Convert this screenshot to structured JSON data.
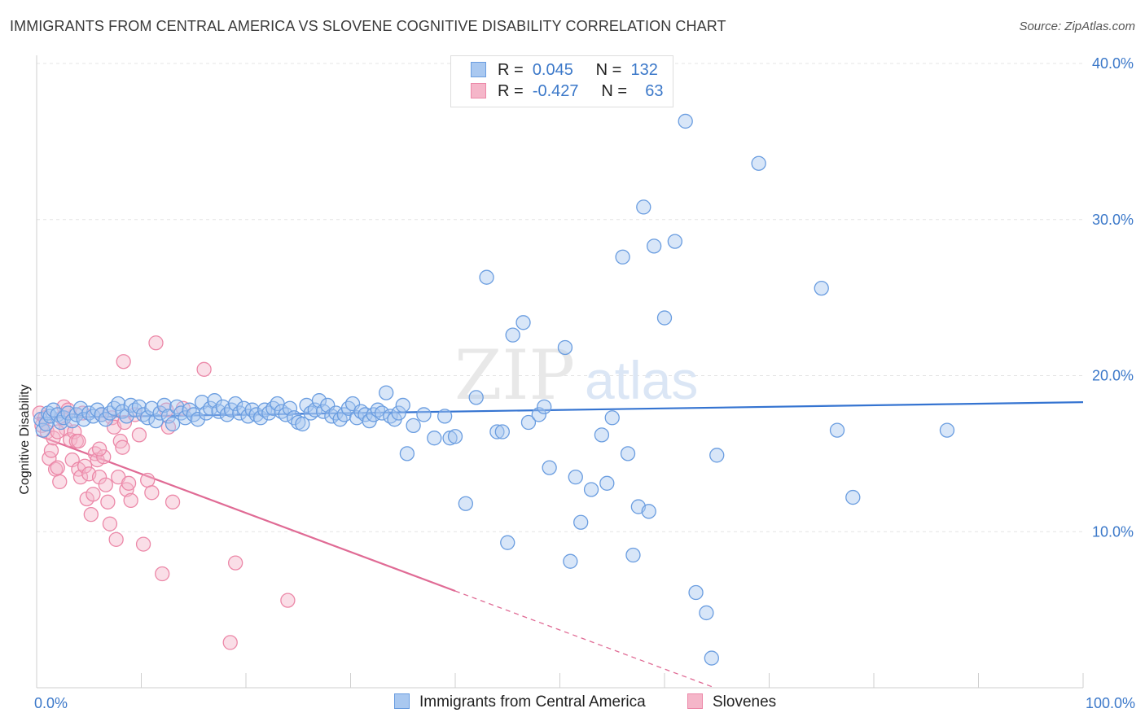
{
  "header": {
    "title": "IMMIGRANTS FROM CENTRAL AMERICA VS SLOVENE COGNITIVE DISABILITY CORRELATION CHART",
    "source": "Source: ZipAtlas.com"
  },
  "watermark": "ZIPatlas",
  "legend": {
    "rows": [
      {
        "r_label": "R =",
        "r_value": "0.045",
        "n_label": "N =",
        "n_value": "132",
        "color": "#a9c8f0"
      },
      {
        "r_label": "R =",
        "r_value": "-0.427",
        "n_label": "N =",
        "n_value": "63",
        "color": "#f5b6c9"
      }
    ]
  },
  "bottom_legend": {
    "items": [
      {
        "label": "Immigrants from Central America",
        "color": "#a9c8f0"
      },
      {
        "label": "Slovenes",
        "color": "#f5b6c9"
      }
    ]
  },
  "chart_data": {
    "type": "scatter",
    "title": "IMMIGRANTS FROM CENTRAL AMERICA VS SLOVENE COGNITIVE DISABILITY CORRELATION CHART",
    "xlabel": "",
    "ylabel": "Cognitive Disability",
    "xlim": [
      0,
      100
    ],
    "ylim": [
      0,
      40
    ],
    "x_tick_labels": [
      "0.0%",
      "100.0%"
    ],
    "y_ticks": [
      10,
      20,
      30,
      40
    ],
    "y_tick_labels": [
      "10.0%",
      "20.0%",
      "30.0%",
      "40.0%"
    ],
    "grid": true,
    "legend_position": "top-center",
    "series": [
      {
        "name": "Immigrants from Central America",
        "color": "#6a9de0",
        "fill": "#a9c8f0",
        "trend": {
          "x": [
            0,
            100
          ],
          "y": [
            17.3,
            18.3
          ],
          "color": "#3574d1"
        },
        "points": [
          [
            0.4,
            17.2
          ],
          [
            0.6,
            16.5
          ],
          [
            0.9,
            16.9
          ],
          [
            1.1,
            17.6
          ],
          [
            1.3,
            17.4
          ],
          [
            1.6,
            17.8
          ],
          [
            2.0,
            17.5
          ],
          [
            2.3,
            17.0
          ],
          [
            2.6,
            17.3
          ],
          [
            3.0,
            17.6
          ],
          [
            3.4,
            17.1
          ],
          [
            3.8,
            17.5
          ],
          [
            4.2,
            17.9
          ],
          [
            4.5,
            17.2
          ],
          [
            5.0,
            17.6
          ],
          [
            5.4,
            17.4
          ],
          [
            5.8,
            17.8
          ],
          [
            6.2,
            17.5
          ],
          [
            6.6,
            17.2
          ],
          [
            7.0,
            17.6
          ],
          [
            7.4,
            17.9
          ],
          [
            7.8,
            18.2
          ],
          [
            8.2,
            17.7
          ],
          [
            8.6,
            17.4
          ],
          [
            9.0,
            18.1
          ],
          [
            9.4,
            17.8
          ],
          [
            9.8,
            18.0
          ],
          [
            10.2,
            17.5
          ],
          [
            10.6,
            17.3
          ],
          [
            11.0,
            17.9
          ],
          [
            11.4,
            17.1
          ],
          [
            11.8,
            17.6
          ],
          [
            12.2,
            18.1
          ],
          [
            12.6,
            17.4
          ],
          [
            13.0,
            16.9
          ],
          [
            13.4,
            18.0
          ],
          [
            13.8,
            17.6
          ],
          [
            14.2,
            17.3
          ],
          [
            14.6,
            17.8
          ],
          [
            15.0,
            17.5
          ],
          [
            15.4,
            17.2
          ],
          [
            15.8,
            18.3
          ],
          [
            16.2,
            17.6
          ],
          [
            16.6,
            17.9
          ],
          [
            17.0,
            18.4
          ],
          [
            17.4,
            17.7
          ],
          [
            17.8,
            18.0
          ],
          [
            18.2,
            17.5
          ],
          [
            18.6,
            17.8
          ],
          [
            19.0,
            18.2
          ],
          [
            19.4,
            17.6
          ],
          [
            19.8,
            17.9
          ],
          [
            20.2,
            17.4
          ],
          [
            20.6,
            17.8
          ],
          [
            21.0,
            17.5
          ],
          [
            21.4,
            17.3
          ],
          [
            21.8,
            17.8
          ],
          [
            22.2,
            17.6
          ],
          [
            22.6,
            17.9
          ],
          [
            23.0,
            18.2
          ],
          [
            23.4,
            17.7
          ],
          [
            23.8,
            17.5
          ],
          [
            24.2,
            17.9
          ],
          [
            24.6,
            17.3
          ],
          [
            25.0,
            17.0
          ],
          [
            25.4,
            16.9
          ],
          [
            25.8,
            18.1
          ],
          [
            26.2,
            17.6
          ],
          [
            26.6,
            17.8
          ],
          [
            27.0,
            18.4
          ],
          [
            27.4,
            17.7
          ],
          [
            27.8,
            18.1
          ],
          [
            28.2,
            17.4
          ],
          [
            28.6,
            17.6
          ],
          [
            29.0,
            17.2
          ],
          [
            29.4,
            17.5
          ],
          [
            29.8,
            17.9
          ],
          [
            30.2,
            18.2
          ],
          [
            30.6,
            17.3
          ],
          [
            31.0,
            17.7
          ],
          [
            31.4,
            17.5
          ],
          [
            31.8,
            17.1
          ],
          [
            32.2,
            17.5
          ],
          [
            32.6,
            17.8
          ],
          [
            33.0,
            17.6
          ],
          [
            33.4,
            18.9
          ],
          [
            33.8,
            17.4
          ],
          [
            34.2,
            17.2
          ],
          [
            34.6,
            17.6
          ],
          [
            35.0,
            18.1
          ],
          [
            35.4,
            15.0
          ],
          [
            36.0,
            16.8
          ],
          [
            37.0,
            17.5
          ],
          [
            38.0,
            16.0
          ],
          [
            39.0,
            17.4
          ],
          [
            39.5,
            16.0
          ],
          [
            40.0,
            16.1
          ],
          [
            41.0,
            11.8
          ],
          [
            42.0,
            18.6
          ],
          [
            43.0,
            26.3
          ],
          [
            44.0,
            16.4
          ],
          [
            44.5,
            16.4
          ],
          [
            45.0,
            9.3
          ],
          [
            45.5,
            22.6
          ],
          [
            47.0,
            17.0
          ],
          [
            46.5,
            23.4
          ],
          [
            48.0,
            17.5
          ],
          [
            48.5,
            18.0
          ],
          [
            49.0,
            14.1
          ],
          [
            50.5,
            21.8
          ],
          [
            51.0,
            8.1
          ],
          [
            51.5,
            13.5
          ],
          [
            52.0,
            10.6
          ],
          [
            53.0,
            12.7
          ],
          [
            54.0,
            16.2
          ],
          [
            54.5,
            13.1
          ],
          [
            55.0,
            17.3
          ],
          [
            56.0,
            27.6
          ],
          [
            56.5,
            15.0
          ],
          [
            57.0,
            8.5
          ],
          [
            57.5,
            11.6
          ],
          [
            58.0,
            30.8
          ],
          [
            58.5,
            11.3
          ],
          [
            59.0,
            28.3
          ],
          [
            60.0,
            23.7
          ],
          [
            61.0,
            28.6
          ],
          [
            62.0,
            36.3
          ],
          [
            63.0,
            6.1
          ],
          [
            64.0,
            4.8
          ],
          [
            64.5,
            1.9
          ],
          [
            65.0,
            14.9
          ],
          [
            69.0,
            33.6
          ],
          [
            75.0,
            25.6
          ],
          [
            76.5,
            16.5
          ],
          [
            78.0,
            12.2
          ],
          [
            87.0,
            16.5
          ]
        ]
      },
      {
        "name": "Slovenes",
        "color": "#ec88a8",
        "fill": "#f5b6c9",
        "trend": {
          "x": [
            0,
            40
          ],
          "y": [
            16.2,
            6.2
          ],
          "dash_to": [
            100,
            -8.8
          ],
          "color": "#e06b95"
        },
        "points": [
          [
            0.3,
            17.6
          ],
          [
            0.5,
            16.8
          ],
          [
            0.8,
            17.3
          ],
          [
            1.0,
            16.4
          ],
          [
            1.2,
            14.7
          ],
          [
            1.4,
            15.2
          ],
          [
            1.6,
            16.0
          ],
          [
            1.8,
            14.0
          ],
          [
            2.0,
            14.1
          ],
          [
            2.2,
            13.2
          ],
          [
            2.4,
            17.3
          ],
          [
            2.6,
            18.0
          ],
          [
            2.8,
            16.6
          ],
          [
            3.0,
            17.8
          ],
          [
            3.2,
            15.9
          ],
          [
            3.4,
            14.6
          ],
          [
            3.6,
            16.4
          ],
          [
            3.8,
            15.8
          ],
          [
            4.0,
            14.0
          ],
          [
            4.2,
            13.5
          ],
          [
            4.4,
            17.6
          ],
          [
            4.6,
            14.2
          ],
          [
            4.8,
            12.1
          ],
          [
            5.0,
            13.7
          ],
          [
            5.2,
            11.1
          ],
          [
            5.4,
            12.4
          ],
          [
            5.6,
            15.0
          ],
          [
            5.8,
            14.6
          ],
          [
            6.0,
            13.5
          ],
          [
            6.2,
            17.5
          ],
          [
            6.4,
            14.8
          ],
          [
            6.6,
            13.0
          ],
          [
            6.8,
            11.9
          ],
          [
            7.0,
            10.5
          ],
          [
            7.2,
            17.3
          ],
          [
            7.4,
            16.7
          ],
          [
            7.6,
            9.5
          ],
          [
            7.8,
            13.5
          ],
          [
            8.0,
            15.8
          ],
          [
            8.2,
            15.4
          ],
          [
            8.4,
            17.0
          ],
          [
            8.6,
            12.7
          ],
          [
            8.8,
            13.1
          ],
          [
            9.0,
            12.0
          ],
          [
            8.3,
            20.9
          ],
          [
            9.4,
            17.5
          ],
          [
            9.8,
            16.2
          ],
          [
            10.2,
            9.2
          ],
          [
            10.6,
            13.3
          ],
          [
            11.0,
            12.5
          ],
          [
            11.4,
            22.1
          ],
          [
            12.0,
            7.3
          ],
          [
            12.4,
            17.8
          ],
          [
            13.0,
            11.9
          ],
          [
            14.0,
            17.9
          ],
          [
            16.0,
            20.4
          ],
          [
            18.5,
            2.9
          ],
          [
            19.0,
            8.0
          ],
          [
            24.0,
            5.6
          ],
          [
            12.6,
            16.7
          ],
          [
            4.0,
            15.8
          ],
          [
            2.0,
            16.4
          ],
          [
            6.0,
            15.3
          ]
        ]
      }
    ]
  }
}
